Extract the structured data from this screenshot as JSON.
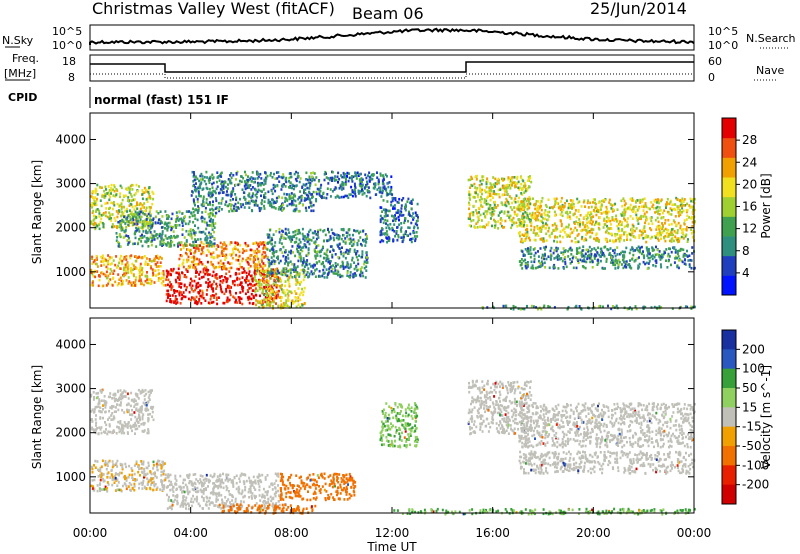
{
  "header": {
    "station": "Christmas Valley West (fitACF)",
    "beam": "Beam 06",
    "date": "25/Jun/2014"
  },
  "noise_panel": {
    "left_label": "N.Sky",
    "right_label": "N.Search",
    "tick_top": "10^5",
    "tick_bottom": "10^0"
  },
  "freq_panel": {
    "left_label_1": "Freq.",
    "left_label_2": "[MHz]",
    "right_label": "Nave",
    "left_tick_top": "18",
    "left_tick_bottom": "8",
    "right_tick_top": "60",
    "right_tick_bottom": "0"
  },
  "cpid": {
    "label": "CPID",
    "value": "normal (fast) 151 IF"
  },
  "x_axis": {
    "label": "Time UT",
    "ticks": [
      "00:00",
      "04:00",
      "08:00",
      "12:00",
      "16:00",
      "20:00",
      "00:00"
    ]
  },
  "chart_data": [
    {
      "type": "heatmap",
      "title": "Power",
      "ylabel": "Slant Range [km]",
      "ylim": [
        180,
        4600
      ],
      "xlim_hours": [
        0,
        24
      ],
      "yticks": [
        "1000",
        "2000",
        "3000",
        "4000"
      ],
      "colorbar": {
        "label": "Power [dB]",
        "ticks": [
          "4",
          "8",
          "12",
          "16",
          "20",
          "24",
          "28"
        ],
        "range": [
          0,
          32
        ],
        "colors": [
          "#0014ff",
          "#1f3fbf",
          "#2f8f7f",
          "#3fa050",
          "#9fcf30",
          "#f0e020",
          "#f0a000",
          "#ef5010",
          "#e50000"
        ]
      },
      "regions": [
        {
          "t0": 0.0,
          "t1": 3.0,
          "r0": 700,
          "r1": 1400,
          "level": 0.7
        },
        {
          "t0": 3.0,
          "t1": 7.5,
          "r0": 300,
          "r1": 1100,
          "level": 0.95
        },
        {
          "t0": 3.5,
          "t1": 7.0,
          "r0": 1100,
          "r1": 1700,
          "level": 0.75
        },
        {
          "t0": 6.5,
          "t1": 8.5,
          "r0": 200,
          "r1": 1100,
          "level": 0.6
        },
        {
          "t0": 0.0,
          "t1": 2.5,
          "r0": 2000,
          "r1": 3000,
          "level": 0.55
        },
        {
          "t0": 1.0,
          "t1": 5.0,
          "r0": 1600,
          "r1": 2400,
          "level": 0.35
        },
        {
          "t0": 4.0,
          "t1": 9.0,
          "r0": 2400,
          "r1": 3300,
          "level": 0.3
        },
        {
          "t0": 7.0,
          "t1": 11.0,
          "r0": 900,
          "r1": 2000,
          "level": 0.3
        },
        {
          "t0": 9.0,
          "t1": 12.0,
          "r0": 2700,
          "r1": 3300,
          "level": 0.25
        },
        {
          "t0": 11.5,
          "t1": 13.0,
          "r0": 1700,
          "r1": 2700,
          "level": 0.25
        },
        {
          "t0": 15.0,
          "t1": 17.5,
          "r0": 2000,
          "r1": 3200,
          "level": 0.55
        },
        {
          "t0": 17.0,
          "t1": 24.0,
          "r0": 1700,
          "r1": 2700,
          "level": 0.6
        },
        {
          "t0": 17.0,
          "t1": 24.0,
          "r0": 1100,
          "r1": 1600,
          "level": 0.3
        },
        {
          "t0": 15.5,
          "t1": 24.0,
          "r0": 180,
          "r1": 260,
          "level": 0.35
        }
      ]
    },
    {
      "type": "heatmap",
      "title": "Velocity",
      "ylabel": "Slant Range [km]",
      "ylim": [
        180,
        4600
      ],
      "xlim_hours": [
        0,
        24
      ],
      "yticks": [
        "1000",
        "2000",
        "3000",
        "4000"
      ],
      "colorbar": {
        "label": "Velocity [m s^-1]",
        "ticks": [
          "200",
          "100",
          "50",
          "15",
          "-15",
          "-50",
          "-100",
          "-200"
        ],
        "colors": [
          "#1830a0",
          "#2858c0",
          "#38a038",
          "#90d060",
          "#c0c0b8",
          "#f0a000",
          "#f07000",
          "#e82000",
          "#d00000"
        ]
      },
      "regions": [
        {
          "t0": 0.0,
          "t1": 3.0,
          "r0": 700,
          "r1": 1400,
          "v": -10
        },
        {
          "t0": 3.0,
          "t1": 7.5,
          "r0": 300,
          "r1": 1100,
          "v": -5
        },
        {
          "t0": 7.5,
          "t1": 10.5,
          "r0": 500,
          "r1": 1100,
          "v": -60
        },
        {
          "t0": 0.0,
          "t1": 2.5,
          "r0": 2000,
          "r1": 3000,
          "v": 0
        },
        {
          "t0": 11.5,
          "t1": 13.0,
          "r0": 1700,
          "r1": 2700,
          "v": 30
        },
        {
          "t0": 15.0,
          "t1": 17.5,
          "r0": 2000,
          "r1": 3200,
          "v": 0
        },
        {
          "t0": 17.0,
          "t1": 24.0,
          "r0": 1700,
          "r1": 2700,
          "v": 0
        },
        {
          "t0": 17.0,
          "t1": 24.0,
          "r0": 1100,
          "r1": 1600,
          "v": -5
        },
        {
          "t0": 5.0,
          "t1": 9.0,
          "r0": 200,
          "r1": 400,
          "v": -80
        },
        {
          "t0": 12.0,
          "t1": 24.0,
          "r0": 180,
          "r1": 300,
          "v": 35
        }
      ]
    }
  ]
}
